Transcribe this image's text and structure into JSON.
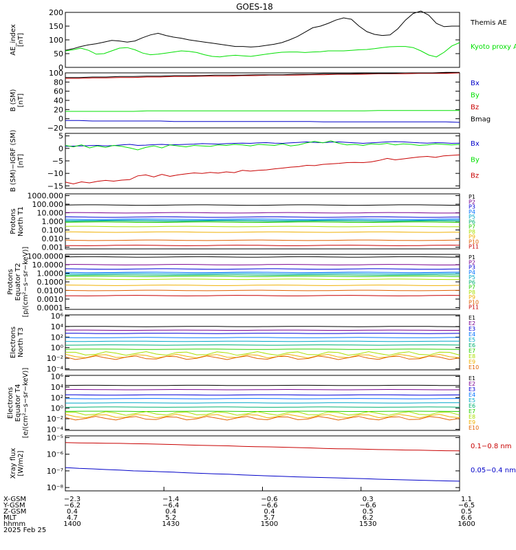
{
  "title": "GOES-18",
  "colors": {
    "black": "#000000",
    "green": "#00e000",
    "blue": "#0000c8",
    "red": "#c80000",
    "p": [
      "#000000",
      "#7a0090",
      "#0000d8",
      "#0070ff",
      "#00a8c8",
      "#00b070",
      "#28d000",
      "#a8e000",
      "#f0b000",
      "#e06000",
      "#c80000"
    ]
  },
  "chart_data": [
    {
      "type": "line",
      "ylabel": [
        "AE_index",
        "[nT]"
      ],
      "ylim": [
        0,
        200
      ],
      "yticks": [
        "0",
        "50",
        "100",
        "150",
        "200"
      ],
      "legend": [
        "Kyoto proxy AE",
        "Themis AE"
      ],
      "series": [
        {
          "name": "Themis AE",
          "color": "#000000",
          "values": [
            62,
            68,
            76,
            82,
            86,
            92,
            98,
            96,
            92,
            96,
            108,
            118,
            124,
            116,
            110,
            106,
            100,
            96,
            92,
            88,
            84,
            80,
            76,
            76,
            74,
            76,
            80,
            84,
            90,
            100,
            112,
            128,
            144,
            150,
            160,
            172,
            180,
            175,
            150,
            130,
            120,
            116,
            118,
            140,
            172,
            196,
            205,
            190,
            160,
            148,
            150,
            150
          ]
        },
        {
          "name": "Kyoto proxy AE",
          "color": "#00e000",
          "values": [
            60,
            64,
            70,
            62,
            48,
            50,
            60,
            70,
            72,
            64,
            52,
            46,
            48,
            52,
            56,
            60,
            58,
            54,
            46,
            40,
            38,
            42,
            44,
            42,
            40,
            44,
            48,
            52,
            55,
            56,
            56,
            54,
            56,
            57,
            60,
            60,
            60,
            62,
            64,
            65,
            68,
            72,
            75,
            76,
            76,
            72,
            60,
            45,
            38,
            55,
            78,
            90
          ]
        }
      ]
    },
    {
      "type": "line",
      "ylabel": [
        "B (SM)",
        "[nT]"
      ],
      "ylim": [
        -20,
        100
      ],
      "yticks": [
        "−20",
        "0",
        "20",
        "40",
        "60",
        "80",
        "100"
      ],
      "legend": [
        "Bx",
        "By",
        "Bz",
        "Bmag"
      ],
      "series": [
        {
          "name": "Bx",
          "color": "#0000c8",
          "values": [
            -4,
            -4,
            -5,
            -5,
            -5,
            -5,
            -5,
            -5,
            -6,
            -6,
            -6,
            -6,
            -6,
            -6,
            -6,
            -6,
            -6,
            -6,
            -6,
            -7,
            -7,
            -7,
            -7,
            -7,
            -7,
            -7,
            -7,
            -7,
            -7,
            -8
          ]
        },
        {
          "name": "By",
          "color": "#00e000",
          "values": [
            16,
            16,
            16,
            16,
            16,
            16,
            17,
            17,
            17,
            17,
            17,
            17,
            17,
            17,
            17,
            17,
            17,
            17,
            17,
            17,
            17,
            17,
            17,
            18,
            18,
            18,
            18,
            18,
            18,
            18
          ]
        },
        {
          "name": "Bz",
          "color": "#c80000",
          "values": [
            88,
            88,
            89,
            89,
            90,
            90,
            91,
            91,
            92,
            92,
            93,
            93,
            93,
            94,
            94,
            95,
            95,
            95,
            96,
            96,
            97,
            97,
            97,
            98,
            98,
            98,
            99,
            99,
            99,
            100
          ]
        },
        {
          "name": "Bmag",
          "color": "#000000",
          "values": [
            90,
            90,
            91,
            91,
            92,
            92,
            93,
            93,
            94,
            94,
            94,
            95,
            95,
            95,
            96,
            96,
            96,
            97,
            97,
            98,
            98,
            98,
            99,
            99,
            99,
            100,
            100,
            100,
            101,
            101
          ]
        }
      ]
    },
    {
      "type": "line",
      "ylabel": [
        "B (SM)−IGRF (SM)",
        "[nT]"
      ],
      "ylim": [
        -16,
        6
      ],
      "yticks": [
        "−15",
        "−10",
        "−5",
        "0",
        "5"
      ],
      "legend": [
        "Bx",
        "By",
        "Bz"
      ],
      "series": [
        {
          "name": "Bx",
          "color": "#0000c8",
          "values": [
            0.8,
            0.9,
            1.0,
            1.1,
            1.2,
            1.0,
            1.1,
            1.4,
            1.6,
            1.2,
            1.3,
            1.5,
            1.6,
            1.4,
            1.5,
            1.6,
            1.7,
            1.9,
            1.8,
            1.7,
            1.9,
            2.0,
            2.1,
            2.0,
            2.2,
            2.3,
            2.1,
            2.0,
            2.2,
            2.4,
            2.6,
            2.4,
            2.3,
            2.5,
            2.6,
            2.4,
            2.2,
            2.0,
            2.2,
            2.4,
            2.6,
            2.7,
            2.6,
            2.4,
            2.2,
            2.1,
            2.3,
            2.2,
            2.0,
            2.1
          ]
        },
        {
          "name": "By",
          "color": "#00e000",
          "values": [
            1.2,
            0.6,
            1.4,
            0.2,
            1.0,
            0.4,
            1.2,
            0.8,
            0.2,
            -0.6,
            0.4,
            1.0,
            0.2,
            1.4,
            1.0,
            0.6,
            1.2,
            1.0,
            0.8,
            1.4,
            1.2,
            1.6,
            1.4,
            1.0,
            1.6,
            1.4,
            1.2,
            1.8,
            1.0,
            1.4,
            2.2,
            2.8,
            2.2,
            3.0,
            2.0,
            1.4,
            1.6,
            1.2,
            1.8,
            1.6,
            2.0,
            1.4,
            1.8,
            1.6,
            1.2,
            1.4,
            1.8,
            1.6,
            1.4,
            1.6
          ]
        },
        {
          "name": "Bz",
          "color": "#c80000",
          "values": [
            -13.5,
            -14.2,
            -13.4,
            -13.8,
            -13.2,
            -12.8,
            -13.1,
            -12.7,
            -12.5,
            -11.0,
            -10.6,
            -11.4,
            -10.4,
            -11.2,
            -10.6,
            -10.2,
            -9.8,
            -10.0,
            -9.6,
            -9.9,
            -9.4,
            -9.7,
            -8.8,
            -9.1,
            -8.8,
            -8.6,
            -8.2,
            -7.9,
            -7.5,
            -7.3,
            -6.8,
            -6.9,
            -6.4,
            -6.2,
            -6.0,
            -5.7,
            -5.6,
            -5.7,
            -5.4,
            -4.8,
            -4.0,
            -4.6,
            -4.2,
            -3.8,
            -3.4,
            -3.2,
            -3.6,
            -3.0,
            -2.8,
            -2.6
          ]
        }
      ]
    },
    {
      "type": "line",
      "log": true,
      "ylabel": [
        "Protons",
        "North T1"
      ],
      "ylim": [
        -3.2,
        3.2
      ],
      "yticks": [
        "0.001",
        "0.010",
        "0.100",
        "1.000",
        "10.000",
        "100.000",
        "1000.000"
      ],
      "legend": [
        "P1",
        "P2",
        "P3",
        "P4",
        "P5",
        "P6",
        "P7",
        "P8",
        "P9",
        "P10",
        "P11"
      ],
      "levels": [
        1.9,
        1.0,
        0.5,
        0.25,
        0.12,
        0.02,
        -0.1,
        -0.6,
        -1.25,
        -2.2,
        -2.8
      ]
    },
    {
      "type": "line",
      "log": true,
      "ylabel": [
        "Protons",
        "Equator T2",
        "[p/(cm²−s−sr−keV)]"
      ],
      "ylim": [
        -4.2,
        2.2
      ],
      "yticks": [
        "0.0001",
        "0.0010",
        "0.0100",
        "0.1000",
        "1.0000",
        "10.0000",
        "100.0000"
      ],
      "legend": [
        "P1",
        "P2",
        "P3",
        "P4",
        "P5",
        "P6",
        "P7",
        "P8",
        "P9",
        "P10",
        "P11"
      ],
      "levels": [
        1.9,
        1.0,
        0.5,
        0.1,
        -0.05,
        -0.2,
        -0.35,
        -0.7,
        -1.4,
        -2.0,
        -2.6
      ]
    },
    {
      "type": "line",
      "log": true,
      "ylabel": [
        "Electrons",
        "North T3"
      ],
      "ylim": [
        -4.2,
        6.2
      ],
      "yticks": [
        "10⁻⁴",
        "10⁻²",
        "10⁰",
        "10²",
        "10⁴",
        "10⁶"
      ],
      "legend": [
        "E1",
        "E2",
        "E3",
        "E4",
        "E5",
        "E6",
        "E7",
        "E8",
        "E9",
        "E10"
      ],
      "levels": [
        4.0,
        3.3,
        2.7,
        1.9,
        1.2,
        0.5,
        -0.3,
        -1.1,
        -1.6,
        -1.9
      ]
    },
    {
      "type": "line",
      "log": true,
      "ylabel": [
        "Electrons",
        "Equator T4",
        "[e/(cm²−s−sr−keV)]"
      ],
      "ylim": [
        -4.2,
        6.2
      ],
      "yticks": [
        "10⁻⁴",
        "10⁻²",
        "10⁰",
        "10²",
        "10⁴",
        "10⁶"
      ],
      "legend": [
        "E1",
        "E2",
        "E3",
        "E4",
        "E5",
        "E6",
        "E7",
        "E8",
        "E9",
        "E10"
      ],
      "levels": [
        4.3,
        3.5,
        2.5,
        1.8,
        1.0,
        0.2,
        -0.6,
        -1.0,
        -1.5,
        -1.9
      ]
    },
    {
      "type": "line",
      "log": true,
      "ylabel": [
        "Xray flux",
        "[W/m2]"
      ],
      "ylim": [
        -8.2,
        -4.9
      ],
      "yticks": [
        "10⁻⁸",
        "10⁻⁷",
        "10⁻⁶",
        "10⁻⁵"
      ],
      "legend": [
        "0.1−0.8 nm",
        "0.05−0.4 nm"
      ],
      "series": [
        {
          "name": "0.1−0.8 nm",
          "color": "#c80000",
          "values": [
            -5.3,
            -5.32,
            -5.33,
            -5.34,
            -5.35,
            -5.37,
            -5.38,
            -5.4,
            -5.42,
            -5.45,
            -5.47,
            -5.48,
            -5.5,
            -5.53,
            -5.55,
            -5.56,
            -5.58,
            -5.6,
            -5.62,
            -5.65,
            -5.67,
            -5.68,
            -5.7,
            -5.72,
            -5.73,
            -5.75,
            -5.76,
            -5.78,
            -5.79,
            -5.8
          ]
        },
        {
          "name": "0.05−0.4 nm",
          "color": "#0000c8",
          "values": [
            -6.8,
            -6.85,
            -6.88,
            -6.92,
            -6.95,
            -7.0,
            -7.02,
            -7.05,
            -7.08,
            -7.12,
            -7.15,
            -7.18,
            -7.2,
            -7.24,
            -7.27,
            -7.3,
            -7.33,
            -7.36,
            -7.38,
            -7.4,
            -7.42,
            -7.45,
            -7.47,
            -7.5,
            -7.52,
            -7.54,
            -7.56,
            -7.58,
            -7.6,
            -7.62
          ]
        }
      ]
    }
  ],
  "x_axis": {
    "row_labels": [
      "X-GSM",
      "Y-GSM",
      "Z-GSM",
      "MLT",
      "hhmm",
      "2025 Feb 25"
    ],
    "columns": [
      [
        "−2.3",
        "−6.2",
        "0.4",
        "4.7",
        "1400"
      ],
      [
        "−1.4",
        "−6.4",
        "0.4",
        "5.2",
        "1430"
      ],
      [
        "−0.6",
        "−6.6",
        "0.4",
        "5.7",
        "1500"
      ],
      [
        "0.3",
        "−6.6",
        "0.5",
        "6.2",
        "1530"
      ],
      [
        "1.1",
        "−6.5",
        "0.5",
        "6.6",
        "1600"
      ]
    ]
  }
}
